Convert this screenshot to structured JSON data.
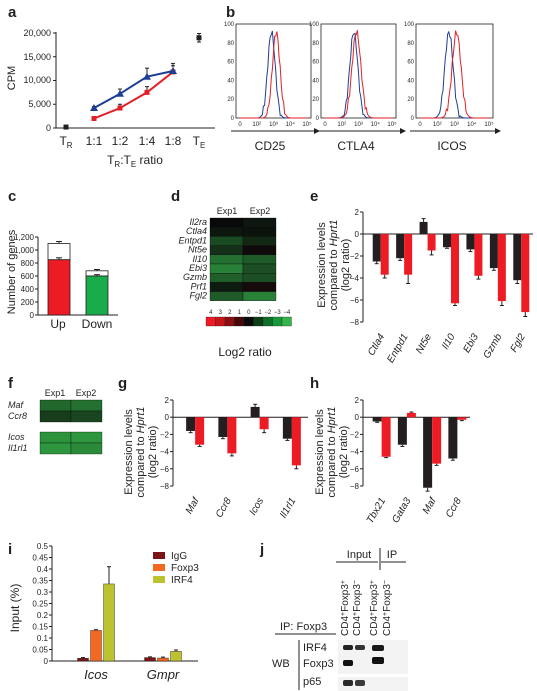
{
  "panels": {
    "a": "a",
    "b": "b",
    "c": "c",
    "d": "d",
    "e": "e",
    "f": "f",
    "g": "g",
    "h": "h",
    "i": "i",
    "j": "j"
  },
  "colors": {
    "treg_red": "#e41e26",
    "teff_blue": "#1c3f94",
    "black_bar": "#231f20",
    "igg": "#7a1416",
    "foxp3": "#f26a21",
    "irf4": "#bcc230",
    "up_red": "#ed1c24",
    "down_green": "#1aab4b"
  },
  "chart_data": [
    {
      "id": "a",
      "type": "line",
      "ylabel": "CPM",
      "xlabel_main": "T",
      "xlabel_sub1": "R",
      "xlabel_mid": ":T",
      "xlabel_sub2": "E",
      "xlabel_tail": " ratio",
      "yticks": [
        "0",
        "5,000",
        "10,000",
        "15,000",
        "20,000"
      ],
      "ylim": [
        0,
        20000
      ],
      "categories": [
        "T_R",
        "1:1",
        "1:2",
        "1:4",
        "1:8",
        "T_E"
      ],
      "xtick_main": [
        "T",
        "1:1",
        "1:2",
        "1:4",
        "1:8",
        "T"
      ],
      "xtick_sub": [
        "R",
        "",
        "",
        "",
        "",
        "E"
      ],
      "series": [
        {
          "values": [
            null,
            2000,
            4200,
            7500,
            11800,
            null
          ],
          "err": [
            0,
            200,
            800,
            1200,
            1300,
            0
          ]
        },
        {
          "values": [
            null,
            4200,
            7200,
            10800,
            12000,
            null
          ],
          "err": [
            0,
            300,
            1000,
            1800,
            1600,
            0
          ]
        }
      ],
      "controls": [
        {
          "x": "T_R",
          "value": 200,
          "err": 150
        },
        {
          "x": "T_E",
          "value": 19000,
          "err": 900
        }
      ]
    },
    {
      "id": "b",
      "type": "line",
      "panels": [
        {
          "xlabel": "CD25",
          "mu_red": 2.7,
          "sd_red": 0.28,
          "mu_blue": 2.35,
          "sd_blue": 0.28
        },
        {
          "xlabel": "CTLA4",
          "mu_red": 2.35,
          "sd_red": 0.33,
          "mu_blue": 2.15,
          "sd_blue": 0.3
        },
        {
          "xlabel": "ICOS",
          "mu_red": 2.65,
          "sd_red": 0.32,
          "mu_blue": 2.1,
          "sd_blue": 0.3
        }
      ],
      "yticks": [
        "0",
        "20",
        "40",
        "60",
        "80",
        "100"
      ],
      "xticks": [
        "0",
        "10²",
        "10³",
        "10⁴",
        "10⁵"
      ]
    },
    {
      "id": "c",
      "type": "bar",
      "ylabel": "Number of genes",
      "categories": [
        "Up",
        "Down"
      ],
      "yticks": [
        "0",
        "200",
        "400",
        "600",
        "800",
        "1,000",
        "1,200"
      ],
      "ylim": [
        0,
        1200
      ],
      "colored": [
        850,
        600
      ],
      "total": [
        1100,
        680
      ],
      "err": [
        30,
        20
      ]
    },
    {
      "id": "d",
      "type": "heatmap",
      "columns": [
        "Exp1",
        "Exp2"
      ],
      "rows": [
        "Il2ra",
        "Ctla4",
        "Entpd1",
        "Nt5e",
        "Il10",
        "Ebi3",
        "Gzmb",
        "Prf1",
        "Fgl2"
      ],
      "values": [
        [
          0,
          -0.3
        ],
        [
          -0.3,
          -0.2
        ],
        [
          -1.5,
          -0.7
        ],
        [
          -0.9,
          0.1
        ],
        [
          -2.4,
          -1.9
        ],
        [
          -2.8,
          -1.6
        ],
        [
          -2,
          -1.6
        ],
        [
          -0.4,
          0.2
        ],
        [
          -1.9,
          -2.8
        ]
      ],
      "scale_ticks": [
        "4",
        "3",
        "2",
        "1",
        "0",
        "−1",
        "−2",
        "−3",
        "−4"
      ],
      "scale_colors": [
        "#ed1c24",
        "#c6151b",
        "#8b0e13",
        "#450709",
        "#0a0a0a",
        "#0b3d17",
        "#0f6e28",
        "#17983a",
        "#35b449"
      ],
      "scale_label": "Log2 ratio"
    },
    {
      "id": "e",
      "type": "bar",
      "ylabel_l1": "Expression levels",
      "ylabel_l2a": "compared to ",
      "ylabel_l2b": "Hprt1",
      "ylabel_l3": "(log2 ratio)",
      "yticks": [
        "2",
        "0",
        "−2",
        "−4",
        "−6",
        "−8"
      ],
      "ylim": [
        -8,
        2
      ],
      "categories": [
        "Ctla4",
        "Entpd1",
        "Nt5e",
        "Il10",
        "Ebi3",
        "Gzmb",
        "Fgl2"
      ],
      "series": [
        {
          "values": [
            -2.5,
            -2.2,
            1.1,
            -1.2,
            -1.4,
            -3.1,
            -4.2
          ],
          "err": [
            0.2,
            0.2,
            0.3,
            0.1,
            0.2,
            0.2,
            0.3
          ]
        },
        {
          "values": [
            -3.7,
            -3.7,
            -1.5,
            -6.3,
            -3.8,
            -6.1,
            -7.1
          ],
          "err": [
            0.3,
            0.8,
            0.4,
            0.2,
            0.3,
            0.4,
            0.4
          ]
        }
      ]
    },
    {
      "id": "f",
      "type": "heatmap",
      "columns": [
        "Exp1",
        "Exp2"
      ],
      "rows": [
        "Maf",
        "Ccr8",
        "Icos",
        "Il1rl1"
      ],
      "values": [
        [
          -2.2,
          -2.4
        ],
        [
          -1.2,
          -1.4
        ],
        [
          -3.2,
          -3.3
        ],
        [
          -3.3,
          -3
        ]
      ]
    },
    {
      "id": "g",
      "type": "bar",
      "ylabel_l1": "Expression levels",
      "ylabel_l2a": "compared to ",
      "ylabel_l2b": "Hprt1",
      "ylabel_l3": "(log2 ratio)",
      "yticks": [
        "2",
        "0",
        "−2",
        "−4",
        "−6",
        "−8"
      ],
      "ylim": [
        -8,
        2
      ],
      "categories": [
        "Maf",
        "Ccr8",
        "Icos",
        "Il1rl1"
      ],
      "series": [
        {
          "values": [
            -1.6,
            -2.3,
            1.2,
            -2.5
          ],
          "err": [
            0.2,
            0.2,
            0.3,
            0.2
          ]
        },
        {
          "values": [
            -3.2,
            -4.2,
            -1.4,
            -5.6
          ],
          "err": [
            0.2,
            0.3,
            0.4,
            0.4
          ]
        }
      ]
    },
    {
      "id": "h",
      "type": "bar",
      "ylabel_l1": "Expression levels",
      "ylabel_l2a": "compared to ",
      "ylabel_l2b": "Hprt1",
      "ylabel_l3": "(log2 ratio)",
      "yticks": [
        "2",
        "0",
        "−2",
        "−4",
        "−6",
        "−8"
      ],
      "ylim": [
        -8,
        2
      ],
      "categories": [
        "Tbx21",
        "Gata3",
        "Maf",
        "Ccr8"
      ],
      "series": [
        {
          "values": [
            -0.5,
            -3.2,
            -8.2,
            -4.8
          ],
          "err": [
            0.1,
            0.2,
            0.4,
            0.2
          ]
        },
        {
          "values": [
            -4.6,
            0.5,
            -5.4,
            -0.3
          ],
          "err": [
            0.1,
            0.1,
            0.2,
            0.1
          ]
        }
      ]
    },
    {
      "id": "i",
      "type": "bar",
      "ylabel": "Input (%)",
      "yticks": [
        "0",
        "0.05",
        "0.1",
        "0.15",
        "0.2",
        "0.25",
        "0.3",
        "0.35",
        "0.4",
        "0.45",
        "0.5"
      ],
      "ylim": [
        0,
        0.5
      ],
      "categories": [
        "Icos",
        "Gmpr"
      ],
      "series": [
        {
          "name": "IgG",
          "values": [
            0.012,
            0.015
          ],
          "err": [
            0.003,
            0.003
          ]
        },
        {
          "name": "Foxp3",
          "values": [
            0.133,
            0.013
          ],
          "err": [
            0.003,
            0.004
          ]
        },
        {
          "name": "IRF4",
          "values": [
            0.335,
            0.042
          ],
          "err": [
            0.075,
            0.006
          ]
        }
      ]
    },
    {
      "id": "j",
      "type": "table",
      "group_input": "Input",
      "group_ip": "IP",
      "ip_label": "IP: Foxp3",
      "wb_label": "WB",
      "lanes": [
        {
          "a": "CD4",
          "b": "+",
          "c": "Foxp3",
          "d": "+"
        },
        {
          "a": "CD4",
          "b": "+",
          "c": "Foxp3",
          "d": "−"
        },
        {
          "a": "CD4",
          "b": "+",
          "c": "Foxp3",
          "d": "+"
        },
        {
          "a": "CD4",
          "b": "+",
          "c": "Foxp3",
          "d": "−"
        }
      ],
      "blots": [
        "IRF4",
        "Foxp3",
        "p65"
      ]
    }
  ]
}
